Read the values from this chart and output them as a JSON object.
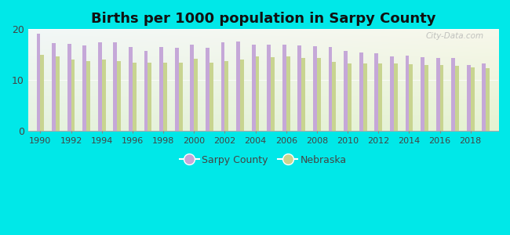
{
  "title": "Births per 1000 population in Sarpy County",
  "years": [
    1990,
    1991,
    1992,
    1993,
    1994,
    1995,
    1996,
    1997,
    1998,
    1999,
    2000,
    2001,
    2002,
    2003,
    2004,
    2005,
    2006,
    2007,
    2008,
    2009,
    2010,
    2011,
    2012,
    2013,
    2014,
    2015,
    2016,
    2017,
    2018,
    2019
  ],
  "sarpy_county": [
    19.2,
    17.3,
    17.2,
    16.8,
    17.4,
    17.5,
    16.5,
    15.8,
    16.5,
    16.3,
    17.0,
    16.3,
    17.5,
    17.6,
    17.0,
    16.9,
    17.0,
    16.8,
    16.6,
    16.5,
    15.7,
    15.5,
    15.3,
    14.7,
    14.8,
    14.5,
    14.3,
    14.4,
    13.0,
    13.2
  ],
  "nebraska": [
    15.0,
    14.6,
    14.1,
    13.8,
    14.0,
    13.8,
    13.5,
    13.4,
    13.4,
    13.4,
    14.2,
    13.5,
    13.7,
    14.0,
    14.6,
    14.5,
    14.6,
    14.4,
    14.3,
    13.6,
    13.3,
    13.2,
    13.3,
    13.2,
    13.1,
    13.0,
    13.0,
    12.8,
    12.5,
    12.4
  ],
  "sarpy_color": "#c5a8d8",
  "nebraska_color": "#c8d490",
  "background_outer": "#00e8e8",
  "ylim": [
    0,
    20
  ],
  "yticks": [
    0,
    10,
    20
  ],
  "legend_sarpy": "Sarpy County",
  "legend_nebraska": "Nebraska",
  "watermark": "City-Data.com"
}
